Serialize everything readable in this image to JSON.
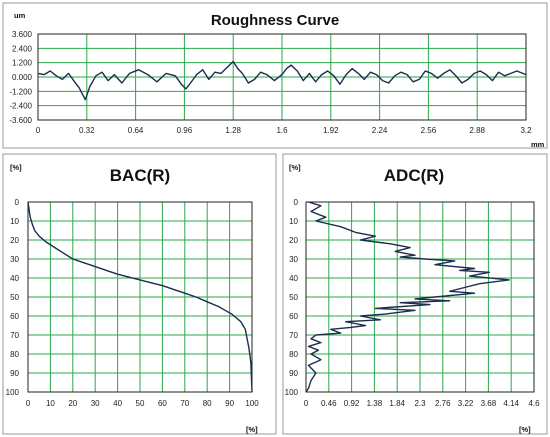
{
  "chart_data": [
    {
      "type": "line",
      "title": "Roughness Curve",
      "ylabel": "um",
      "xlabel": "mm",
      "xlim": [
        0,
        3.2
      ],
      "ylim": [
        -3.6,
        3.6
      ],
      "x_ticks": [
        "0",
        "0.32",
        "0.64",
        "0.96",
        "1.28",
        "1.6",
        "1.92",
        "2.24",
        "2.56",
        "2.88",
        "3.2"
      ],
      "y_ticks": [
        "3.600",
        "2.400",
        "1.200",
        "0.000",
        "-1.200",
        "-2.400",
        "-3.600"
      ],
      "grid": true,
      "series": [
        {
          "x": [
            0,
            0.04,
            0.08,
            0.12,
            0.16,
            0.2,
            0.24,
            0.27,
            0.29,
            0.31,
            0.34,
            0.38,
            0.42,
            0.46,
            0.5,
            0.55,
            0.6,
            0.66,
            0.72,
            0.78,
            0.84,
            0.9,
            0.94,
            0.97,
            1.0,
            1.04,
            1.08,
            1.12,
            1.16,
            1.2,
            1.24,
            1.28,
            1.31,
            1.34,
            1.38,
            1.42,
            1.46,
            1.5,
            1.55,
            1.6,
            1.63,
            1.66,
            1.7,
            1.74,
            1.78,
            1.82,
            1.86,
            1.9,
            1.94,
            1.98,
            2.02,
            2.06,
            2.1,
            2.14,
            2.18,
            2.22,
            2.26,
            2.3,
            2.34,
            2.38,
            2.42,
            2.46,
            2.5,
            2.54,
            2.58,
            2.62,
            2.66,
            2.7,
            2.74,
            2.78,
            2.82,
            2.86,
            2.9,
            2.94,
            2.98,
            3.02,
            3.06,
            3.1,
            3.14,
            3.2
          ],
          "values": [
            0.3,
            0.2,
            0.5,
            0.1,
            -0.2,
            0.3,
            -0.4,
            -0.9,
            -1.4,
            -1.9,
            -0.8,
            0.1,
            0.4,
            -0.3,
            0.2,
            -0.5,
            0.3,
            0.6,
            0.2,
            -0.4,
            0.3,
            0.1,
            -0.6,
            -1.0,
            -0.5,
            0.2,
            0.6,
            -0.2,
            0.4,
            0.3,
            0.8,
            1.3,
            0.7,
            0.3,
            -0.5,
            -0.2,
            0.4,
            0.2,
            -0.3,
            0.2,
            0.7,
            1.0,
            0.5,
            -0.3,
            0.3,
            -0.4,
            0.2,
            0.5,
            0.1,
            -0.6,
            0.2,
            0.7,
            0.3,
            -0.2,
            0.4,
            0.2,
            -0.3,
            -0.5,
            0.1,
            0.4,
            0.2,
            -0.4,
            -0.2,
            0.5,
            0.3,
            -0.1,
            0.3,
            0.6,
            0.1,
            -0.5,
            -0.2,
            0.3,
            0.5,
            0.2,
            -0.3,
            0.4,
            0.1,
            0.3,
            0.5,
            0.2
          ]
        }
      ]
    },
    {
      "type": "line",
      "title": "BAC(R)",
      "ylabel": "[%]",
      "xlabel": "[%]",
      "xlim": [
        0,
        100
      ],
      "ylim": [
        0,
        100
      ],
      "y_inverted": true,
      "x_ticks": [
        "0",
        "10",
        "20",
        "30",
        "40",
        "50",
        "60",
        "70",
        "80",
        "90",
        "100"
      ],
      "y_ticks": [
        "0",
        "10",
        "20",
        "30",
        "40",
        "50",
        "60",
        "70",
        "80",
        "90",
        "100"
      ],
      "grid": true,
      "series": [
        {
          "x": [
            0,
            0.5,
            1,
            2,
            3,
            5,
            8,
            12,
            16,
            20,
            25,
            30,
            35,
            40,
            45,
            50,
            55,
            60,
            65,
            70,
            75,
            80,
            85,
            88,
            91,
            93,
            95,
            96,
            97,
            97.5,
            98,
            98.5,
            99,
            99.5,
            100
          ],
          "values": [
            0,
            4,
            8,
            12,
            15,
            18,
            21,
            24,
            27,
            30,
            32,
            34,
            36,
            38,
            39.5,
            41,
            42.5,
            44,
            46,
            48,
            50,
            52.5,
            55,
            57,
            59,
            61,
            63,
            65,
            67,
            70,
            73,
            76,
            80,
            85,
            100
          ]
        }
      ]
    },
    {
      "type": "line",
      "title": "ADC(R)",
      "ylabel": "[%]",
      "xlabel": "[%]",
      "xlim": [
        0,
        4.6
      ],
      "ylim": [
        0,
        100
      ],
      "y_inverted": true,
      "x_ticks": [
        "0",
        "0.46",
        "0.92",
        "1.38",
        "1.84",
        "2.3",
        "2.76",
        "3.22",
        "3.68",
        "4.14",
        "4.6"
      ],
      "y_ticks": [
        "0",
        "10",
        "20",
        "30",
        "40",
        "50",
        "60",
        "70",
        "80",
        "90",
        "100"
      ],
      "grid": true,
      "series": [
        {
          "x": [
            0.05,
            0.3,
            0.1,
            0.4,
            0.2,
            0.7,
            1.0,
            1.4,
            1.1,
            1.7,
            2.1,
            1.8,
            2.2,
            1.9,
            2.4,
            3.0,
            2.6,
            3.4,
            3.1,
            3.7,
            3.3,
            4.1,
            3.5,
            3.2,
            2.9,
            3.4,
            2.6,
            2.2,
            2.9,
            1.9,
            2.5,
            1.4,
            2.2,
            1.6,
            1.1,
            1.5,
            0.8,
            1.2,
            0.9,
            0.5,
            0.7,
            0.2,
            0.1,
            0.3,
            0.05,
            0.25,
            0.1,
            0.3,
            0.05,
            0.2,
            0.1,
            0.05,
            0.0
          ],
          "values": [
            0,
            2,
            5,
            8,
            10,
            13,
            16,
            18,
            20,
            22,
            24,
            26,
            28,
            29,
            30,
            31,
            33,
            35,
            36,
            37,
            39,
            41,
            43,
            45,
            47,
            48,
            50,
            51,
            52,
            53,
            54,
            56,
            57,
            59,
            60,
            62,
            63,
            65,
            66,
            67,
            69,
            70,
            72,
            74,
            76,
            78,
            80,
            83,
            86,
            90,
            94,
            98,
            100
          ]
        }
      ]
    }
  ]
}
